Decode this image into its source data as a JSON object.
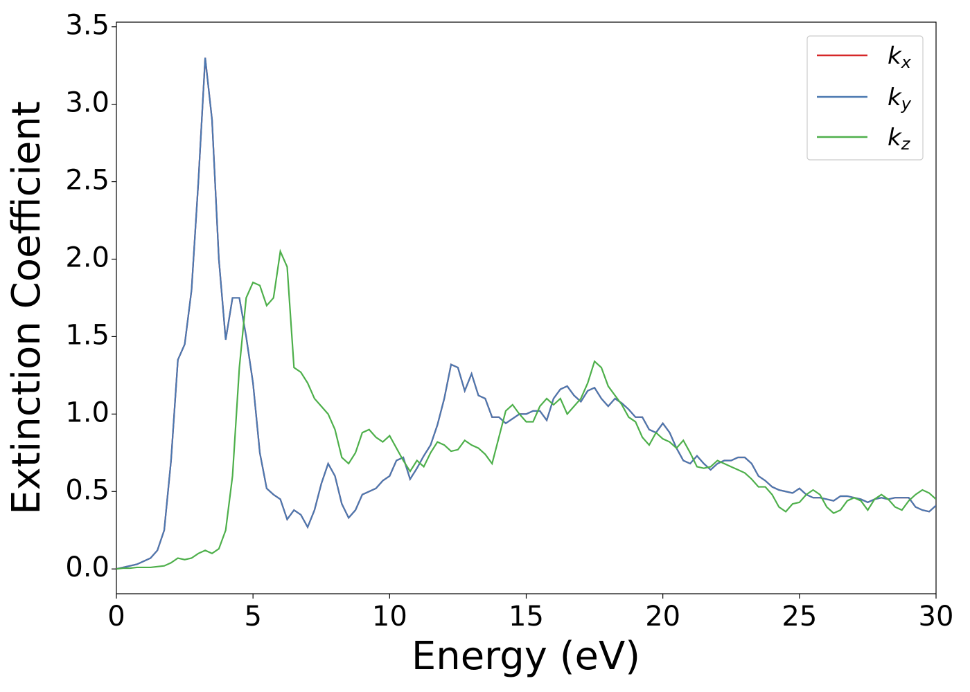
{
  "chart_data": {
    "type": "line",
    "xlabel": "Energy (eV)",
    "ylabel": "Extinction Coefficient",
    "xlim": [
      0,
      30
    ],
    "ylim": [
      -0.16,
      3.53
    ],
    "xticks": [
      0,
      5,
      10,
      15,
      20,
      25,
      30
    ],
    "yticks": [
      {
        "value": 0,
        "label": "0.0"
      },
      0.5,
      {
        "value": 1,
        "label": "1.0"
      },
      1.5,
      {
        "value": 2,
        "label": "2.0"
      },
      2.5,
      {
        "value": 3,
        "label": "3.0"
      },
      3.5
    ],
    "legend": "upper right",
    "grid": false,
    "x": [
      0,
      0.25,
      0.5,
      0.75,
      1,
      1.25,
      1.5,
      1.75,
      2,
      2.25,
      2.5,
      2.75,
      3,
      3.25,
      3.5,
      3.75,
      4,
      4.25,
      4.5,
      4.75,
      5,
      5.25,
      5.5,
      5.75,
      6,
      6.25,
      6.5,
      6.75,
      7,
      7.25,
      7.5,
      7.75,
      8,
      8.25,
      8.5,
      8.75,
      9,
      9.25,
      9.5,
      9.75,
      10,
      10.25,
      10.5,
      10.75,
      11,
      11.25,
      11.5,
      11.75,
      12,
      12.25,
      12.5,
      12.75,
      13,
      13.25,
      13.5,
      13.75,
      14,
      14.25,
      14.5,
      14.75,
      15,
      15.25,
      15.5,
      15.75,
      16,
      16.25,
      16.5,
      16.75,
      17,
      17.25,
      17.5,
      17.75,
      18,
      18.25,
      18.5,
      18.75,
      19,
      19.25,
      19.5,
      19.75,
      20,
      20.25,
      20.5,
      20.75,
      21,
      21.25,
      21.5,
      21.75,
      22,
      22.25,
      22.5,
      22.75,
      23,
      23.25,
      23.5,
      23.75,
      24,
      24.25,
      24.5,
      24.75,
      25,
      25.25,
      25.5,
      25.75,
      26,
      26.25,
      26.5,
      26.75,
      27,
      27.25,
      27.5,
      27.75,
      28,
      28.25,
      28.5,
      28.75,
      29,
      29.25,
      29.5,
      29.75,
      30
    ],
    "series": [
      {
        "name": "kx",
        "color": "#d62728",
        "values": [
          0,
          0.01,
          0.02,
          0.03,
          0.05,
          0.07,
          0.12,
          0.25,
          0.7,
          1.35,
          1.45,
          1.8,
          2.5,
          3.3,
          2.9,
          2.0,
          1.48,
          1.75,
          1.75,
          1.5,
          1.2,
          0.75,
          0.52,
          0.48,
          0.45,
          0.32,
          0.38,
          0.35,
          0.27,
          0.38,
          0.55,
          0.68,
          0.6,
          0.42,
          0.33,
          0.38,
          0.48,
          0.5,
          0.52,
          0.57,
          0.6,
          0.7,
          0.72,
          0.58,
          0.65,
          0.73,
          0.8,
          0.93,
          1.1,
          1.32,
          1.3,
          1.15,
          1.26,
          1.12,
          1.1,
          0.98,
          0.98,
          0.94,
          0.97,
          1.0,
          1.0,
          1.02,
          1.02,
          0.96,
          1.1,
          1.16,
          1.18,
          1.12,
          1.08,
          1.15,
          1.17,
          1.1,
          1.05,
          1.1,
          1.07,
          1.03,
          0.98,
          0.98,
          0.9,
          0.88,
          0.94,
          0.88,
          0.78,
          0.7,
          0.68,
          0.73,
          0.68,
          0.64,
          0.68,
          0.7,
          0.7,
          0.72,
          0.72,
          0.68,
          0.6,
          0.57,
          0.53,
          0.51,
          0.5,
          0.49,
          0.52,
          0.48,
          0.46,
          0.46,
          0.45,
          0.44,
          0.47,
          0.47,
          0.46,
          0.45,
          0.43,
          0.45,
          0.46,
          0.45,
          0.46,
          0.46,
          0.46,
          0.4,
          0.38,
          0.37,
          0.41
        ]
      },
      {
        "name": "ky",
        "color": "#4a78b0",
        "values": [
          0,
          0.01,
          0.02,
          0.03,
          0.05,
          0.07,
          0.12,
          0.25,
          0.7,
          1.35,
          1.45,
          1.8,
          2.5,
          3.3,
          2.9,
          2.0,
          1.48,
          1.75,
          1.75,
          1.5,
          1.2,
          0.75,
          0.52,
          0.48,
          0.45,
          0.32,
          0.38,
          0.35,
          0.27,
          0.38,
          0.55,
          0.68,
          0.6,
          0.42,
          0.33,
          0.38,
          0.48,
          0.5,
          0.52,
          0.57,
          0.6,
          0.7,
          0.72,
          0.58,
          0.65,
          0.73,
          0.8,
          0.93,
          1.1,
          1.32,
          1.3,
          1.15,
          1.26,
          1.12,
          1.1,
          0.98,
          0.98,
          0.94,
          0.97,
          1.0,
          1.0,
          1.02,
          1.02,
          0.96,
          1.1,
          1.16,
          1.18,
          1.12,
          1.08,
          1.15,
          1.17,
          1.1,
          1.05,
          1.1,
          1.07,
          1.03,
          0.98,
          0.98,
          0.9,
          0.88,
          0.94,
          0.88,
          0.78,
          0.7,
          0.68,
          0.73,
          0.68,
          0.64,
          0.68,
          0.7,
          0.7,
          0.72,
          0.72,
          0.68,
          0.6,
          0.57,
          0.53,
          0.51,
          0.5,
          0.49,
          0.52,
          0.48,
          0.46,
          0.46,
          0.45,
          0.44,
          0.47,
          0.47,
          0.46,
          0.45,
          0.43,
          0.45,
          0.46,
          0.45,
          0.46,
          0.46,
          0.46,
          0.4,
          0.38,
          0.37,
          0.41
        ]
      },
      {
        "name": "kz",
        "color": "#4daf4a",
        "values": [
          0,
          0.005,
          0.005,
          0.01,
          0.01,
          0.01,
          0.015,
          0.02,
          0.04,
          0.07,
          0.06,
          0.07,
          0.1,
          0.12,
          0.1,
          0.13,
          0.25,
          0.6,
          1.3,
          1.75,
          1.85,
          1.83,
          1.7,
          1.75,
          2.05,
          1.95,
          1.3,
          1.27,
          1.2,
          1.1,
          1.05,
          1.0,
          0.9,
          0.72,
          0.68,
          0.75,
          0.88,
          0.9,
          0.85,
          0.82,
          0.86,
          0.78,
          0.7,
          0.63,
          0.7,
          0.66,
          0.75,
          0.82,
          0.8,
          0.76,
          0.77,
          0.83,
          0.8,
          0.78,
          0.74,
          0.68,
          0.85,
          1.02,
          1.06,
          1.0,
          0.95,
          0.95,
          1.05,
          1.1,
          1.06,
          1.1,
          1.0,
          1.05,
          1.1,
          1.2,
          1.34,
          1.3,
          1.18,
          1.12,
          1.06,
          0.98,
          0.95,
          0.85,
          0.8,
          0.88,
          0.84,
          0.82,
          0.78,
          0.83,
          0.75,
          0.66,
          0.65,
          0.66,
          0.7,
          0.68,
          0.66,
          0.64,
          0.62,
          0.58,
          0.53,
          0.53,
          0.48,
          0.4,
          0.37,
          0.42,
          0.43,
          0.48,
          0.51,
          0.48,
          0.4,
          0.36,
          0.38,
          0.44,
          0.46,
          0.44,
          0.38,
          0.45,
          0.48,
          0.45,
          0.4,
          0.38,
          0.44,
          0.48,
          0.51,
          0.49,
          0.45
        ]
      }
    ]
  }
}
